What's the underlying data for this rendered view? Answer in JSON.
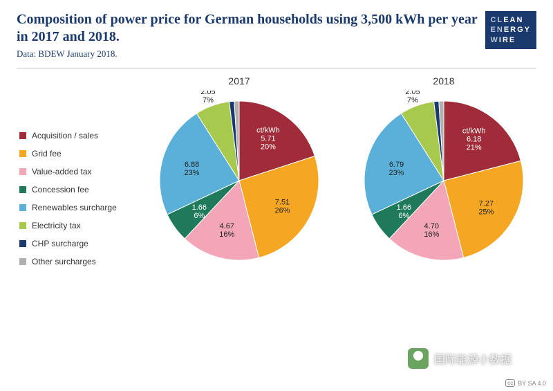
{
  "header": {
    "title": "Composition of power price for German households using 3,500 kWh per year in 2017 and 2018.",
    "subtitle": "Data: BDEW January 2018.",
    "logo": {
      "row1a": "CL",
      "row1b": "EAN",
      "row2a": "EN",
      "row2b": "ERGY",
      "row3a": "W",
      "row3b": "IRE"
    }
  },
  "legend": [
    {
      "label": "Acquisition / sales",
      "color": "#a02c3a"
    },
    {
      "label": "Grid fee",
      "color": "#f5a623"
    },
    {
      "label": "Value-added tax",
      "color": "#f2a6b8"
    },
    {
      "label": "Concession fee",
      "color": "#1f7a5c"
    },
    {
      "label": "Renewables surcharge",
      "color": "#5bb0d9"
    },
    {
      "label": "Electricity tax",
      "color": "#a7c94e"
    },
    {
      "label": "CHP surcharge",
      "color": "#1a3a6e"
    },
    {
      "label": "Other surcharges",
      "color": "#b0b0b0"
    }
  ],
  "charts": [
    {
      "title": "2017",
      "unit_label": "ct/kWh",
      "radius": 115,
      "slices": [
        {
          "key": "acq",
          "value": 5.71,
          "pct": 20,
          "color": "#a02c3a",
          "label_inside": true,
          "white": true,
          "show_unit": true
        },
        {
          "key": "grid",
          "value": 7.51,
          "pct": 26,
          "color": "#f5a623",
          "label_inside": true,
          "white": false
        },
        {
          "key": "vat",
          "value": 4.67,
          "pct": 16,
          "color": "#f2a6b8",
          "label_inside": true,
          "white": false
        },
        {
          "key": "conc",
          "value": 1.66,
          "pct": 6,
          "color": "#1f7a5c",
          "label_inside": true,
          "white": true
        },
        {
          "key": "ren",
          "value": 6.88,
          "pct": 23,
          "color": "#5bb0d9",
          "label_inside": true,
          "white": false
        },
        {
          "key": "etax",
          "value": 2.05,
          "pct": 7,
          "color": "#a7c94e",
          "label_inside": false,
          "white": false
        },
        {
          "key": "chp",
          "value": null,
          "pct": 1,
          "color": "#1a3a6e",
          "label_inside": false,
          "white": false,
          "no_label": true
        },
        {
          "key": "oth",
          "value": null,
          "pct": 1,
          "color": "#b0b0b0",
          "label_inside": false,
          "white": false,
          "no_label": true
        }
      ]
    },
    {
      "title": "2018",
      "unit_label": "ct/kWh",
      "radius": 115,
      "slices": [
        {
          "key": "acq",
          "value": 6.18,
          "pct": 21,
          "color": "#a02c3a",
          "label_inside": true,
          "white": true,
          "show_unit": true
        },
        {
          "key": "grid",
          "value": 7.27,
          "pct": 25,
          "color": "#f5a623",
          "label_inside": true,
          "white": false
        },
        {
          "key": "vat",
          "value": 4.7,
          "pct": 16,
          "color": "#f2a6b8",
          "label_inside": true,
          "white": false
        },
        {
          "key": "conc",
          "value": 1.66,
          "pct": 6,
          "color": "#1f7a5c",
          "label_inside": true,
          "white": true
        },
        {
          "key": "ren",
          "value": 6.79,
          "pct": 23,
          "color": "#5bb0d9",
          "label_inside": true,
          "white": false
        },
        {
          "key": "etax",
          "value": 2.05,
          "pct": 7,
          "color": "#a7c94e",
          "label_inside": false,
          "white": false
        },
        {
          "key": "chp",
          "value": null,
          "pct": 1,
          "color": "#1a3a6e",
          "label_inside": false,
          "white": false,
          "no_label": true
        },
        {
          "key": "oth",
          "value": null,
          "pct": 1,
          "color": "#b0b0b0",
          "label_inside": false,
          "white": false,
          "no_label": true
        }
      ]
    }
  ],
  "watermark": {
    "text": "国际能源小数据"
  },
  "license": {
    "cc": "cc",
    "text": "BY SA 4.0"
  }
}
